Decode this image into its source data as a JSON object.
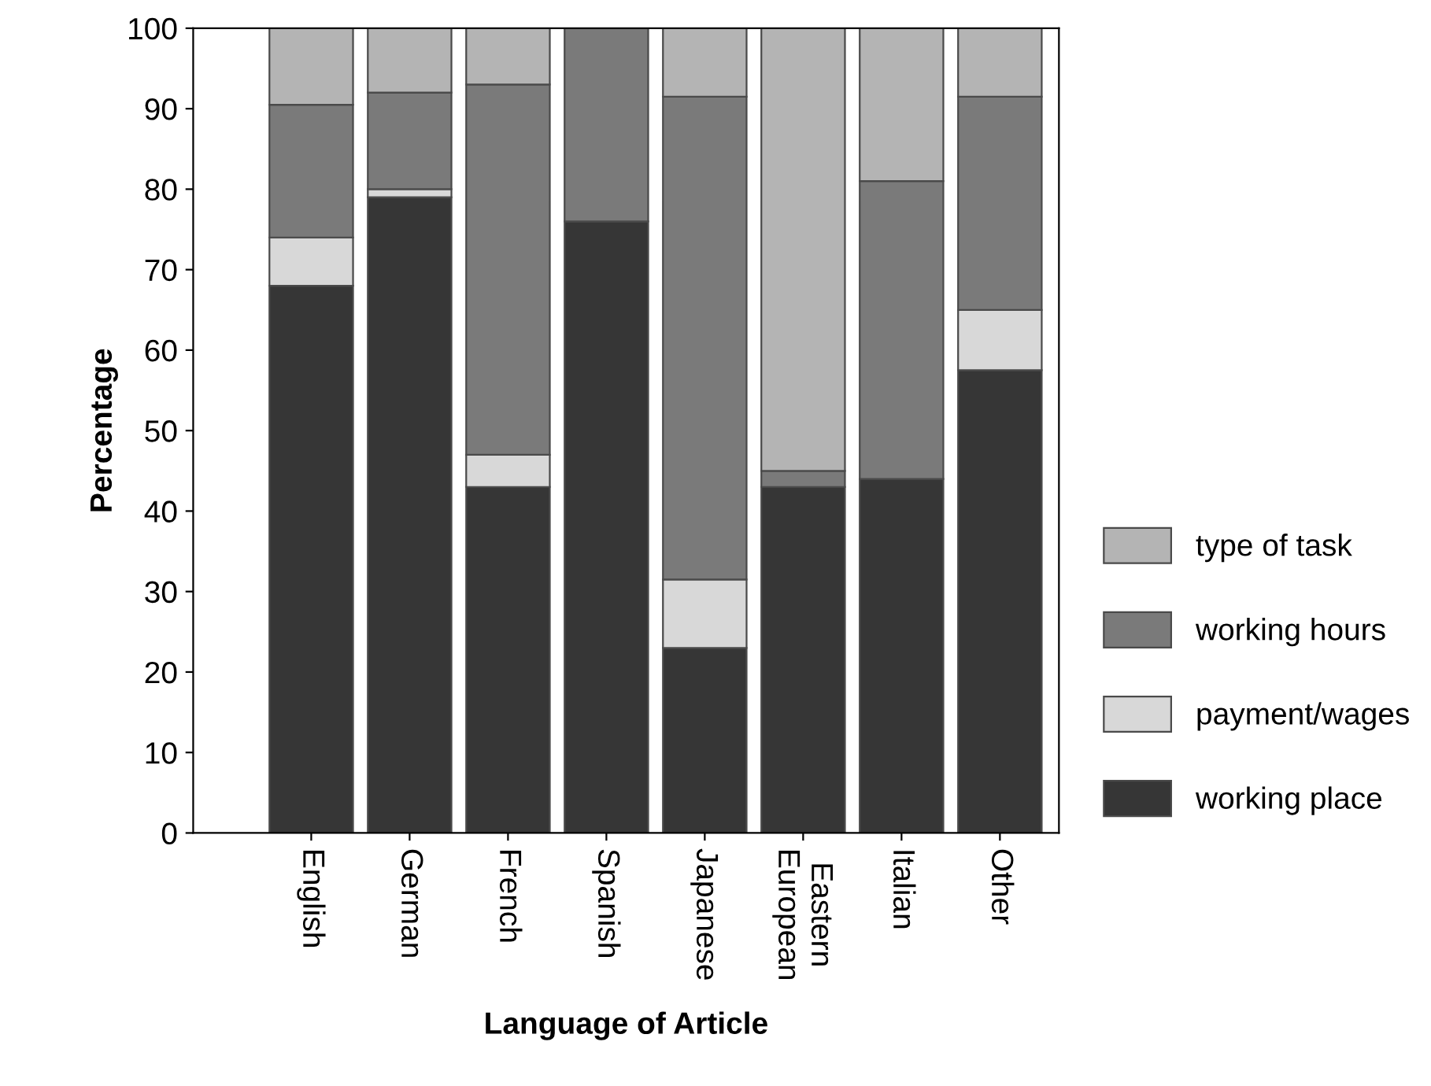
{
  "chart_data": {
    "type": "bar",
    "stacked": true,
    "xlabel": "Language of Article",
    "ylabel": "Percentage",
    "categories": [
      "English",
      "German",
      "French",
      "Spanish",
      "Japanese",
      "Eastern\nEuropean",
      "Italian",
      "Other"
    ],
    "series": [
      {
        "name": "working place",
        "color": "#363636",
        "values": [
          68,
          79,
          43,
          76,
          23,
          43,
          44,
          57.5
        ]
      },
      {
        "name": "payment/wages",
        "color": "#d8d8d8",
        "values": [
          6,
          1,
          4,
          null,
          8.5,
          null,
          null,
          7.5
        ]
      },
      {
        "name": "working hours",
        "color": "#7a7a7a",
        "values": [
          16.5,
          12,
          46,
          24,
          60,
          2,
          37,
          26.5
        ]
      },
      {
        "name": "type of task",
        "color": "#b4b4b4",
        "values": [
          9.5,
          8,
          7,
          null,
          8.5,
          55,
          19,
          8.5
        ]
      }
    ],
    "ylim": [
      0,
      100
    ],
    "yticks": [
      0,
      10,
      20,
      30,
      40,
      50,
      60,
      70,
      80,
      90,
      100
    ],
    "grid": false,
    "legend": "right"
  }
}
